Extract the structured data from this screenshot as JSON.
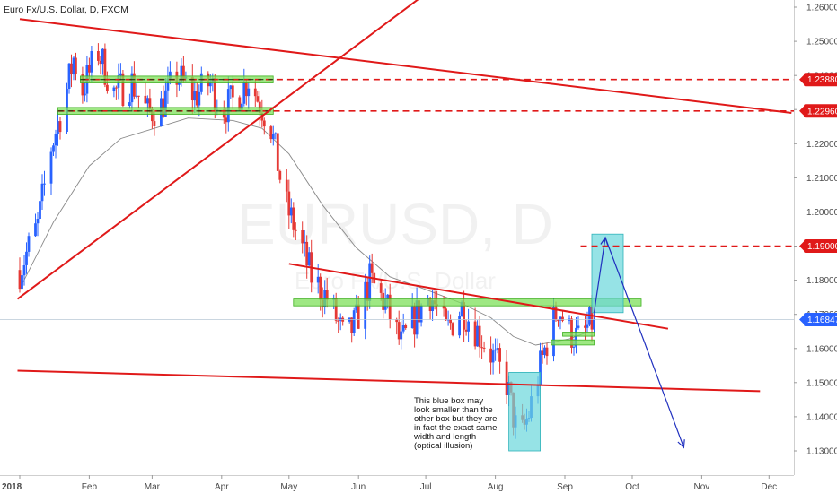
{
  "header": {
    "symbol_title": "Euro Fx/U.S. Dollar, D, FXCM"
  },
  "watermark": {
    "main": "EURUSD, D",
    "sub": "Euro Fx/U.S. Dollar"
  },
  "note": {
    "lines": [
      "This blue box may",
      "look smaller than the",
      "other box but they are",
      " in fact the exact same",
      "width and length",
      "(optical illusion)"
    ]
  },
  "colors": {
    "up": "#2962ff",
    "down": "#e53935",
    "line": "#e01919",
    "arrow": "#1f2fbf",
    "zone_green": "#7ee05a",
    "zone_cyan": "#6ad7dc",
    "ma": "#8a8a8a",
    "tag_blue": "#2962ff"
  },
  "chart_data": {
    "type": "candlestick",
    "title": "Euro Fx/U.S. Dollar, D, FXCM",
    "y_axis_side": "right",
    "y_range": [
      1.127,
      1.262
    ],
    "y_ticks": [
      "1.26000",
      "1.25000",
      "1.24000",
      "1.23000",
      "1.22000",
      "1.21000",
      "1.20000",
      "1.19000",
      "1.18000",
      "1.17000",
      "1.16000",
      "1.15000",
      "1.14000",
      "1.13000"
    ],
    "x_ticks": [
      {
        "label": "2018",
        "day": 0
      },
      {
        "label": "Feb",
        "day": 31
      },
      {
        "label": "Mar",
        "day": 59
      },
      {
        "label": "Apr",
        "day": 90
      },
      {
        "label": "May",
        "day": 120
      },
      {
        "label": "Jun",
        "day": 151
      },
      {
        "label": "Jul",
        "day": 181
      },
      {
        "label": "Aug",
        "day": 212
      },
      {
        "label": "Sep",
        "day": 243
      },
      {
        "label": "Oct",
        "day": 273
      },
      {
        "label": "Nov",
        "day": 304
      },
      {
        "label": "Dec",
        "day": 334
      }
    ],
    "price_tags": [
      {
        "label": "1.23880",
        "value": 1.2388,
        "style": "red"
      },
      {
        "label": "1.22960",
        "value": 1.2296,
        "style": "red"
      },
      {
        "label": "1.19000",
        "value": 1.19,
        "style": "red"
      },
      {
        "label": "1.16847",
        "value": 1.16847,
        "style": "blue"
      }
    ],
    "current_price": 1.16847,
    "horizontal_levels": [
      {
        "value": 1.2388,
        "from_day": 28,
        "style": "dashed"
      },
      {
        "value": 1.2296,
        "from_day": 17,
        "style": "dashed"
      },
      {
        "value": 1.19,
        "from_day": 250,
        "style": "dashed"
      }
    ],
    "trend_lines": [
      {
        "from": [
          0,
          1.2565
        ],
        "to": [
          344,
          1.229
        ]
      },
      {
        "from": [
          -1,
          1.1745
        ],
        "to": [
          178,
          1.2625
        ]
      },
      {
        "from": [
          120,
          1.1848
        ],
        "to": [
          289,
          1.1658
        ]
      },
      {
        "from": [
          -1,
          1.1535
        ],
        "to": [
          330,
          1.1475
        ]
      }
    ],
    "zones": [
      {
        "from_day": 27,
        "to_day": 113,
        "low": 1.2378,
        "high": 1.2398,
        "color": "green"
      },
      {
        "from_day": 17,
        "to_day": 113,
        "low": 1.2286,
        "high": 1.2306,
        "color": "green"
      },
      {
        "from_day": 122,
        "to_day": 277,
        "low": 1.1725,
        "high": 1.1745,
        "color": "green"
      },
      {
        "from_day": 237,
        "to_day": 256,
        "low": 1.161,
        "high": 1.1625,
        "color": "green"
      },
      {
        "from_day": 242,
        "to_day": 256,
        "low": 1.1636,
        "high": 1.1648,
        "color": "green"
      },
      {
        "from_day": 218,
        "to_day": 232,
        "low": 1.13,
        "high": 1.153,
        "color": "cyan"
      },
      {
        "from_day": 255,
        "to_day": 269,
        "low": 1.1705,
        "high": 1.1935,
        "color": "cyan"
      }
    ],
    "projection_arrows": [
      {
        "points": [
          [
            256,
            1.1705
          ],
          [
            261,
            1.1925
          ]
        ],
        "head": true
      },
      {
        "points": [
          [
            261,
            1.1925
          ],
          [
            296,
            1.131
          ]
        ],
        "head": true
      }
    ],
    "ma_points": [
      [
        0,
        1.1775
      ],
      [
        15,
        1.197
      ],
      [
        31,
        1.2135
      ],
      [
        45,
        1.2215
      ],
      [
        60,
        1.2245
      ],
      [
        75,
        1.2275
      ],
      [
        95,
        1.2268
      ],
      [
        108,
        1.2245
      ],
      [
        120,
        1.217
      ],
      [
        135,
        1.202
      ],
      [
        150,
        1.1895
      ],
      [
        165,
        1.181
      ],
      [
        180,
        1.1775
      ],
      [
        196,
        1.1735
      ],
      [
        210,
        1.169
      ],
      [
        220,
        1.1635
      ],
      [
        230,
        1.161
      ],
      [
        245,
        1.1628
      ],
      [
        252,
        1.1645
      ]
    ],
    "candle_path": [
      [
        0,
        1.183
      ],
      [
        8,
        1.196
      ],
      [
        14,
        1.219
      ],
      [
        20,
        1.233
      ],
      [
        24,
        1.245
      ],
      [
        28,
        1.236
      ],
      [
        35,
        1.247
      ],
      [
        42,
        1.235
      ],
      [
        50,
        1.238
      ],
      [
        57,
        1.229
      ],
      [
        63,
        1.231
      ],
      [
        70,
        1.24
      ],
      [
        78,
        1.234
      ],
      [
        85,
        1.238
      ],
      [
        90,
        1.23
      ],
      [
        96,
        1.233
      ],
      [
        102,
        1.239
      ],
      [
        107,
        1.232
      ],
      [
        112,
        1.225
      ],
      [
        118,
        1.203
      ],
      [
        124,
        1.193
      ],
      [
        130,
        1.181
      ],
      [
        138,
        1.174
      ],
      [
        145,
        1.162
      ],
      [
        150,
        1.168
      ],
      [
        156,
        1.18
      ],
      [
        163,
        1.173
      ],
      [
        170,
        1.161
      ],
      [
        177,
        1.17
      ],
      [
        183,
        1.176
      ],
      [
        190,
        1.165
      ],
      [
        197,
        1.172
      ],
      [
        203,
        1.166
      ],
      [
        208,
        1.161
      ],
      [
        213,
        1.155
      ],
      [
        217,
        1.15
      ],
      [
        221,
        1.137
      ],
      [
        224,
        1.135
      ],
      [
        227,
        1.141
      ],
      [
        231,
        1.152
      ],
      [
        235,
        1.162
      ],
      [
        240,
        1.172
      ],
      [
        245,
        1.165
      ],
      [
        250,
        1.162
      ],
      [
        253,
        1.166
      ],
      [
        256,
        1.1685
      ]
    ],
    "annotation": "This blue box may look smaller than the other box but they are in fact the exact same width and length (optical illusion)"
  }
}
